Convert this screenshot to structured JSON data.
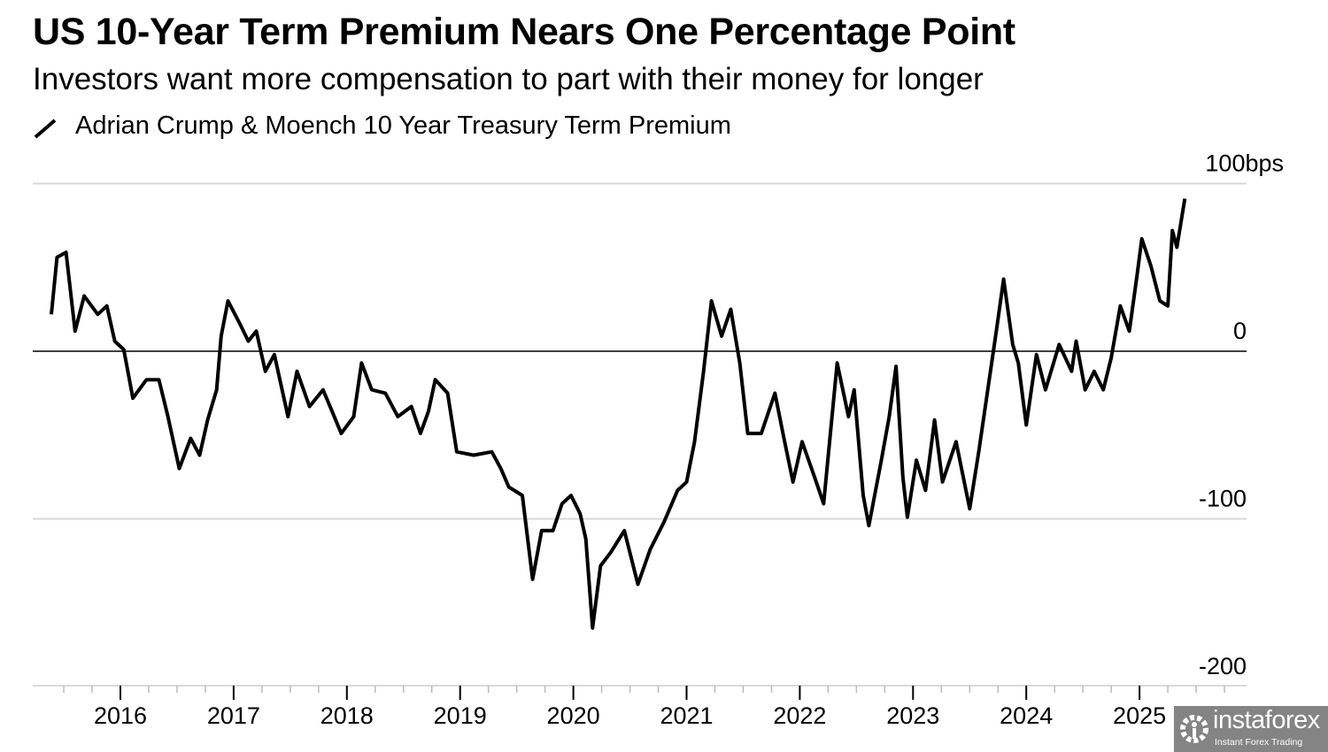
{
  "title": "US 10-Year Term Premium Nears One Percentage Point",
  "subtitle": "Investors want more compensation to part with their money for longer",
  "watermark": {
    "name": "instaforex",
    "tagline": "Instant Forex Trading"
  },
  "chart_data": {
    "type": "line",
    "title": "US 10-Year Term Premium Nears One Percentage Point",
    "subtitle": "Investors want more compensation to part with their money for longer",
    "legend": {
      "entries": [
        "Adrian Crump & Moench 10 Year Treasury Term Premium"
      ],
      "placement": "top-left"
    },
    "xlim": [
      2015.23,
      2025.95
    ],
    "ylim": [
      -200,
      100
    ],
    "y_unit": "bps",
    "y_ticks": [
      {
        "value": 100,
        "label": "100bps"
      },
      {
        "value": 0,
        "label": "0"
      },
      {
        "value": -100,
        "label": "-100"
      },
      {
        "value": -200,
        "label": "-200"
      }
    ],
    "x_ticks": [
      {
        "value": 2016,
        "label": "2016"
      },
      {
        "value": 2017,
        "label": "2017"
      },
      {
        "value": 2018,
        "label": "2018"
      },
      {
        "value": 2019,
        "label": "2019"
      },
      {
        "value": 2020,
        "label": "2020"
      },
      {
        "value": 2021,
        "label": "2021"
      },
      {
        "value": 2022,
        "label": "2022"
      },
      {
        "value": 2023,
        "label": "2023"
      },
      {
        "value": 2024,
        "label": "2024"
      },
      {
        "value": 2025,
        "label": "2025"
      }
    ],
    "grid": "horizontal",
    "line_color": "#000000",
    "grid_color": "#d9d9d9",
    "series": [
      {
        "name": "Adrian Crump & Moench 10 Year Treasury Term Premium",
        "x": [
          2015.39,
          2015.44,
          2015.52,
          2015.6,
          2015.68,
          2015.8,
          2015.88,
          2015.95,
          2016.03,
          2016.11,
          2016.23,
          2016.34,
          2016.42,
          2016.52,
          2016.62,
          2016.7,
          2016.77,
          2016.85,
          2016.89,
          2016.95,
          2017.05,
          2017.13,
          2017.2,
          2017.28,
          2017.36,
          2017.48,
          2017.56,
          2017.67,
          2017.79,
          2017.87,
          2017.95,
          2018.06,
          2018.13,
          2018.22,
          2018.34,
          2018.45,
          2018.57,
          2018.65,
          2018.72,
          2018.78,
          2018.89,
          2018.97,
          2019.12,
          2019.28,
          2019.36,
          2019.43,
          2019.55,
          2019.64,
          2019.72,
          2019.82,
          2019.9,
          2019.98,
          2020.06,
          2020.11,
          2020.17,
          2020.24,
          2020.33,
          2020.45,
          2020.57,
          2020.68,
          2020.8,
          2020.92,
          2021.0,
          2021.07,
          2021.15,
          2021.22,
          2021.31,
          2021.39,
          2021.47,
          2021.54,
          2021.66,
          2021.78,
          2021.86,
          2021.94,
          2022.02,
          2022.13,
          2022.21,
          2022.33,
          2022.43,
          2022.48,
          2022.56,
          2022.61,
          2022.72,
          2022.79,
          2022.85,
          2022.91,
          2022.95,
          2023.03,
          2023.11,
          2023.19,
          2023.26,
          2023.38,
          2023.5,
          2023.58,
          2023.66,
          2023.74,
          2023.8,
          2023.88,
          2023.93,
          2024.0,
          2024.09,
          2024.17,
          2024.29,
          2024.4,
          2024.44,
          2024.52,
          2024.6,
          2024.68,
          2024.75,
          2024.83,
          2024.91,
          2024.98,
          2025.02,
          2025.1,
          2025.18,
          2025.25,
          2025.29,
          2025.33,
          2025.4
        ],
        "values": [
          22,
          56,
          59,
          12,
          33,
          22,
          27,
          6,
          1,
          -28,
          -17,
          -17,
          -39,
          -70,
          -52,
          -62,
          -41,
          -23,
          9,
          30,
          17,
          6,
          12,
          -12,
          -2,
          -39,
          -12,
          -33,
          -23,
          -36,
          -49,
          -39,
          -7,
          -23,
          -25,
          -39,
          -33,
          -49,
          -36,
          -17,
          -25,
          -60,
          -62,
          -60,
          -70,
          -81,
          -86,
          -136,
          -107,
          -107,
          -91,
          -86,
          -97,
          -112,
          -165,
          -128,
          -120,
          -107,
          -139,
          -118,
          -102,
          -83,
          -78,
          -54,
          -12,
          30,
          9,
          25,
          -7,
          -49,
          -49,
          -25,
          -52,
          -78,
          -54,
          -75,
          -91,
          -7,
          -39,
          -23,
          -86,
          -104,
          -65,
          -39,
          -9,
          -75,
          -99,
          -65,
          -83,
          -41,
          -78,
          -54,
          -94,
          -60,
          -23,
          14,
          43,
          4,
          -7,
          -44,
          -2,
          -23,
          4,
          -12,
          6,
          -23,
          -12,
          -23,
          -4,
          27,
          12,
          46,
          67,
          51,
          30,
          27,
          72,
          62,
          91
        ]
      }
    ]
  }
}
